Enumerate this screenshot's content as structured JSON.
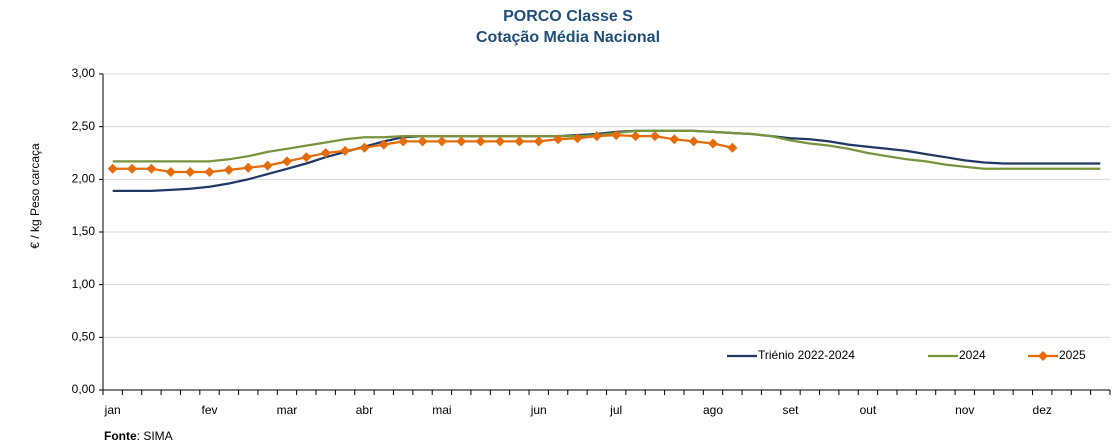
{
  "chart_data": {
    "type": "line",
    "title": "PORCO Classe S",
    "subtitle": "Cotação Média Nacional",
    "y_label": "€ / kg Peso carcaça",
    "source_label": "Fonte",
    "source_text": ": SIMA",
    "categories": [
      "jan",
      null,
      null,
      null,
      null,
      "fev",
      null,
      null,
      null,
      "mar",
      null,
      null,
      null,
      "abr",
      null,
      null,
      null,
      "mai",
      null,
      null,
      null,
      null,
      "jun",
      null,
      null,
      null,
      "jul",
      null,
      null,
      null,
      null,
      "ago",
      null,
      null,
      null,
      "set",
      null,
      null,
      null,
      "out",
      null,
      null,
      null,
      null,
      "nov",
      null,
      null,
      null,
      "dez",
      null,
      null,
      null
    ],
    "series": [
      {
        "name": "Triénio 2022-2024",
        "color": "#1f3864",
        "marker": false,
        "values": [
          1.89,
          1.89,
          1.89,
          1.9,
          1.91,
          1.93,
          1.96,
          2.0,
          2.05,
          2.1,
          2.15,
          2.21,
          2.26,
          2.31,
          2.36,
          2.4,
          2.41,
          2.41,
          2.41,
          2.41,
          2.41,
          2.41,
          2.41,
          2.41,
          2.42,
          2.43,
          2.45,
          2.46,
          2.46,
          2.46,
          2.46,
          2.45,
          2.44,
          2.43,
          2.41,
          2.39,
          2.38,
          2.36,
          2.33,
          2.31,
          2.29,
          2.27,
          2.24,
          2.21,
          2.18,
          2.16,
          2.15,
          2.15,
          2.15,
          2.15,
          2.15,
          2.15
        ]
      },
      {
        "name": "2024",
        "color": "#77933c",
        "marker": false,
        "values": [
          2.17,
          2.17,
          2.17,
          2.17,
          2.17,
          2.17,
          2.19,
          2.22,
          2.26,
          2.29,
          2.32,
          2.35,
          2.38,
          2.4,
          2.4,
          2.41,
          2.41,
          2.41,
          2.41,
          2.41,
          2.41,
          2.41,
          2.41,
          2.41,
          2.41,
          2.42,
          2.44,
          2.46,
          2.46,
          2.46,
          2.46,
          2.45,
          2.44,
          2.43,
          2.41,
          2.37,
          2.34,
          2.32,
          2.29,
          2.25,
          2.22,
          2.19,
          2.17,
          2.14,
          2.12,
          2.1,
          2.1,
          2.1,
          2.1,
          2.1,
          2.1,
          2.1
        ]
      },
      {
        "name": "2025",
        "color": "#e46c0a",
        "marker": true,
        "values": [
          2.1,
          2.1,
          2.1,
          2.07,
          2.07,
          2.07,
          2.09,
          2.11,
          2.13,
          2.17,
          2.21,
          2.25,
          2.27,
          2.3,
          2.33,
          2.36,
          2.36,
          2.36,
          2.36,
          2.36,
          2.36,
          2.36,
          2.36,
          2.38,
          2.39,
          2.41,
          2.42,
          2.41,
          2.41,
          2.38,
          2.36,
          2.34,
          2.3,
          null,
          null,
          null,
          null,
          null,
          null,
          null,
          null,
          null,
          null,
          null,
          null,
          null,
          null,
          null,
          null,
          null,
          null,
          null
        ]
      }
    ],
    "ylim": [
      0,
      3
    ],
    "yticks": [
      {
        "value": 0,
        "label": "0,00"
      },
      {
        "value": 0.5,
        "label": "0,50"
      },
      {
        "value": 1,
        "label": "1,00"
      },
      {
        "value": 1.5,
        "label": "1,50"
      },
      {
        "value": 2,
        "label": "2,00"
      },
      {
        "value": 2.5,
        "label": "2,50"
      },
      {
        "value": 3,
        "label": "3,00"
      }
    ],
    "grid": true,
    "legend": "bottom-right"
  }
}
